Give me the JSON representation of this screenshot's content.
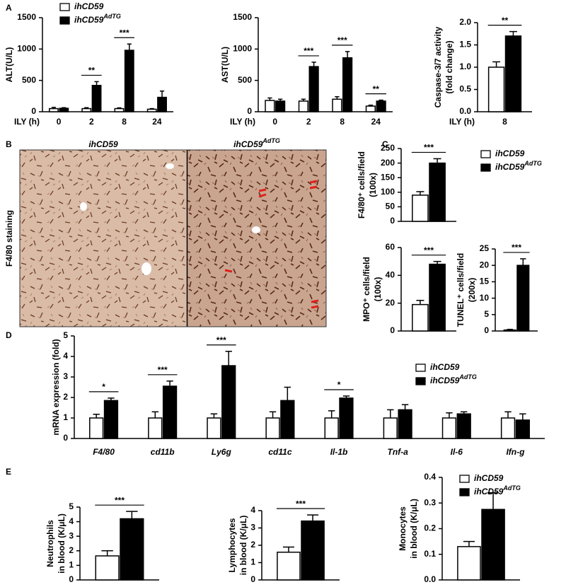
{
  "panel_letters": [
    "A",
    "B",
    "C",
    "D",
    "E"
  ],
  "image_panel": {
    "side_label": "F4/80 staining",
    "titles": [
      {
        "text": "ihCD59"
      },
      {
        "text": "ihCD59",
        "sup": "AdTG"
      }
    ]
  },
  "chart_data": [
    {
      "type": "bar",
      "ylabel": [
        "ALT(U/L)"
      ],
      "xlabel": "ILY (h)",
      "categories": [
        "0",
        "2",
        "8",
        "24"
      ],
      "ylim": [
        0,
        1500
      ],
      "yticks": [
        0,
        500,
        1000,
        1500
      ],
      "legend": true,
      "series": [
        {
          "name": "ihCD59",
          "color": "#ffffff",
          "values": [
            50,
            50,
            50,
            40
          ],
          "errors": [
            20,
            15,
            12,
            10
          ]
        },
        {
          "name": "ihCD59",
          "sup": "AdTG",
          "color": "#000000",
          "values": [
            55,
            420,
            980,
            230
          ],
          "errors": [
            10,
            60,
            100,
            100
          ]
        }
      ],
      "significance": [
        null,
        "**",
        "***",
        null
      ]
    },
    {
      "type": "bar",
      "ylabel": [
        "AST(U/L)"
      ],
      "xlabel": "ILY (h)",
      "categories": [
        "0",
        "2",
        "8",
        "24"
      ],
      "ylim": [
        0,
        1500
      ],
      "yticks": [
        0,
        500,
        1000,
        1500
      ],
      "series": [
        {
          "color": "#ffffff",
          "values": [
            180,
            170,
            200,
            90
          ],
          "errors": [
            40,
            30,
            40,
            15
          ]
        },
        {
          "color": "#000000",
          "values": [
            170,
            720,
            860,
            170
          ],
          "errors": [
            30,
            70,
            100,
            15
          ]
        }
      ],
      "significance": [
        null,
        "***",
        "***",
        "**"
      ]
    },
    {
      "type": "bar",
      "ylabel": [
        "Caspase-3/7 activity",
        "(fold change)"
      ],
      "xlabel": "ILY (h)",
      "categories": [
        "8"
      ],
      "ylim": [
        0,
        2
      ],
      "yticks": [
        {
          "value": 0,
          "label": "0.0"
        },
        0.5,
        {
          "value": 1,
          "label": "1.0"
        },
        1.5,
        {
          "value": 2,
          "label": "2.0"
        }
      ],
      "series": [
        {
          "color": "#ffffff",
          "values": [
            1.0
          ],
          "errors": [
            0.12
          ]
        },
        {
          "color": "#000000",
          "values": [
            1.7
          ],
          "errors": [
            0.1
          ]
        }
      ],
      "significance": [
        "**"
      ]
    },
    {
      "type": "bar",
      "ylabel": [
        "F4/80⁺ cells/field",
        "(100x)"
      ],
      "categories": [
        null
      ],
      "ylim": [
        0,
        250
      ],
      "yticks": [
        0,
        50,
        100,
        150,
        200,
        250
      ],
      "legend": true,
      "series": [
        {
          "name": "ihCD59",
          "color": "#ffffff",
          "values": [
            90
          ],
          "errors": [
            12
          ]
        },
        {
          "name": "ihCD59",
          "sup": "AdTG",
          "color": "#000000",
          "values": [
            200
          ],
          "errors": [
            15
          ]
        }
      ],
      "significance": [
        "***"
      ]
    },
    {
      "type": "bar",
      "ylabel": [
        "MPO⁺ cells/field",
        "(100x)"
      ],
      "categories": [
        null
      ],
      "ylim": [
        0,
        60
      ],
      "yticks": [
        0,
        20,
        40,
        60
      ],
      "series": [
        {
          "color": "#ffffff",
          "values": [
            19
          ],
          "errors": [
            3
          ]
        },
        {
          "color": "#000000",
          "values": [
            48
          ],
          "errors": [
            2
          ]
        }
      ],
      "significance": [
        "***"
      ]
    },
    {
      "type": "bar",
      "ylabel": [
        "TUNEL⁺ cells/field",
        "(200x)"
      ],
      "categories": [
        null
      ],
      "ylim": [
        0,
        25
      ],
      "yticks": [
        0,
        5,
        10,
        15,
        20,
        25
      ],
      "series": [
        {
          "color": "#ffffff",
          "values": [
            0.3
          ],
          "errors": [
            0.2
          ]
        },
        {
          "color": "#000000",
          "values": [
            20
          ],
          "errors": [
            2
          ]
        }
      ],
      "significance": [
        "***"
      ]
    },
    {
      "type": "bar",
      "ylabel": [
        "mRNA expression (fold)"
      ],
      "categories": [
        "F4/80",
        "cd11b",
        "Ly6g",
        "cd11c",
        "Il-1b",
        "Tnf-a",
        "Il-6",
        "Ifn-g"
      ],
      "ylim": [
        0,
        5
      ],
      "yticks": [
        0,
        1,
        2,
        3,
        4,
        5
      ],
      "legend": true,
      "series": [
        {
          "name": "ihCD59",
          "color": "#ffffff",
          "values": [
            1,
            1,
            1,
            1,
            1,
            1,
            1,
            1
          ],
          "errors": [
            0.18,
            0.3,
            0.2,
            0.3,
            0.35,
            0.4,
            0.25,
            0.3
          ]
        },
        {
          "name": "ihCD59",
          "sup": "AdTG",
          "color": "#000000",
          "values": [
            1.85,
            2.55,
            3.55,
            1.85,
            1.97,
            1.4,
            1.2,
            0.9
          ],
          "errors": [
            0.12,
            0.25,
            0.7,
            0.65,
            0.1,
            0.25,
            0.1,
            0.3
          ]
        }
      ],
      "significance": [
        "*",
        "***",
        "***",
        null,
        "*",
        null,
        null,
        null
      ]
    },
    {
      "type": "bar",
      "ylabel": [
        "Neutrophils",
        "in blood (K/μL)"
      ],
      "categories": [
        null
      ],
      "ylim": [
        0,
        5
      ],
      "yticks": [
        0,
        1,
        2,
        3,
        4,
        5
      ],
      "series": [
        {
          "color": "#ffffff",
          "values": [
            1.65
          ],
          "errors": [
            0.35
          ]
        },
        {
          "color": "#000000",
          "values": [
            4.2
          ],
          "errors": [
            0.5
          ]
        }
      ],
      "significance": [
        "***"
      ]
    },
    {
      "type": "bar",
      "ylabel": [
        "Lymphocytes",
        "in blood (K/μL)"
      ],
      "categories": [
        null
      ],
      "ylim": [
        0,
        4
      ],
      "yticks": [
        0,
        1,
        2,
        3,
        4
      ],
      "series": [
        {
          "color": "#ffffff",
          "values": [
            1.6
          ],
          "errors": [
            0.3
          ]
        },
        {
          "color": "#000000",
          "values": [
            3.4
          ],
          "errors": [
            0.35
          ]
        }
      ],
      "significance": [
        "***"
      ]
    },
    {
      "type": "bar",
      "ylabel": [
        "Monocytes",
        "in blood (K/μL)"
      ],
      "categories": [
        null
      ],
      "ylim": [
        0,
        0.4
      ],
      "yticks": [
        {
          "value": 0,
          "label": "0.0"
        },
        0.1,
        0.2,
        0.3,
        0.4
      ],
      "legend": true,
      "series": [
        {
          "name": "ihCD59",
          "color": "#ffffff",
          "values": [
            0.13
          ],
          "errors": [
            0.02
          ]
        },
        {
          "name": "ihCD59",
          "sup": "AdTG",
          "color": "#000000",
          "values": [
            0.275
          ],
          "errors": [
            0.065
          ]
        }
      ]
    }
  ]
}
